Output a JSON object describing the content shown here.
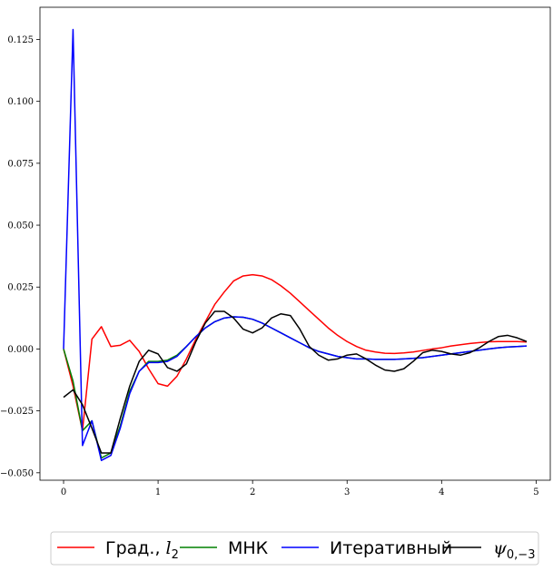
{
  "chart_data": {
    "type": "line",
    "title": "",
    "xlabel": "",
    "ylabel": "",
    "xlim": [
      -0.25,
      5.15
    ],
    "ylim": [
      -0.053,
      0.138
    ],
    "xticks": [
      0,
      1,
      2,
      3,
      4,
      5
    ],
    "xtick_labels": [
      "0",
      "1",
      "2",
      "3",
      "4",
      "5"
    ],
    "yticks": [
      -0.05,
      -0.025,
      0.0,
      0.025,
      0.05,
      0.075,
      0.1,
      0.125
    ],
    "ytick_labels": [
      "−0.050",
      "−0.025",
      "0.000",
      "0.025",
      "0.050",
      "0.075",
      "0.100",
      "0.125"
    ],
    "grid": false,
    "legend_position": "bottom-outside",
    "series": [
      {
        "name": "Град., l2",
        "color": "#ff0000",
        "x": [
          0,
          0.1,
          0.2,
          0.3,
          0.4,
          0.5,
          0.6,
          0.7,
          0.8,
          0.9,
          1.0,
          1.1,
          1.2,
          1.3,
          1.4,
          1.5,
          1.6,
          1.7,
          1.8,
          1.9,
          2.0,
          2.1,
          2.2,
          2.3,
          2.4,
          2.5,
          2.6,
          2.7,
          2.8,
          2.9,
          3.0,
          3.1,
          3.2,
          3.3,
          3.4,
          3.5,
          3.6,
          3.7,
          3.8,
          3.9,
          4.0,
          4.1,
          4.2,
          4.3,
          4.4,
          4.5,
          4.6,
          4.7,
          4.8,
          4.9
        ],
        "values": [
          0.0,
          -0.015,
          -0.033,
          0.004,
          0.009,
          0.001,
          0.0015,
          0.0035,
          -0.001,
          -0.008,
          -0.014,
          -0.015,
          -0.011,
          -0.004,
          0.004,
          0.011,
          0.018,
          0.023,
          0.0275,
          0.0295,
          0.03,
          0.0295,
          0.028,
          0.0255,
          0.0225,
          0.019,
          0.0155,
          0.012,
          0.0085,
          0.0055,
          0.003,
          0.001,
          -0.0005,
          -0.0012,
          -0.0017,
          -0.0018,
          -0.0016,
          -0.0012,
          -0.0006,
          0.0,
          0.0005,
          0.0012,
          0.0017,
          0.0022,
          0.0026,
          0.0029,
          0.003,
          0.003,
          0.003,
          0.0028
        ]
      },
      {
        "name": "МНК",
        "color": "#008000",
        "x": [
          0,
          0.1,
          0.2,
          0.3,
          0.4,
          0.5,
          0.6,
          0.7,
          0.8,
          0.9,
          1.0,
          1.1,
          1.2,
          1.3,
          1.4,
          1.5,
          1.6,
          1.7,
          1.8,
          1.9,
          2.0,
          2.1,
          2.2,
          2.3,
          2.4,
          2.5,
          2.6,
          2.7,
          2.8,
          2.9,
          3.0,
          3.1,
          3.2,
          3.3,
          3.4,
          3.5,
          3.6,
          3.7,
          3.8,
          3.9,
          4.0,
          4.1,
          4.2,
          4.3,
          4.4,
          4.5,
          4.6,
          4.7,
          4.8,
          4.9
        ],
        "values": [
          0.0,
          -0.013,
          -0.033,
          -0.029,
          -0.044,
          -0.042,
          -0.031,
          -0.017,
          -0.009,
          -0.005,
          -0.005,
          -0.0045,
          -0.0025,
          0.001,
          0.005,
          0.0085,
          0.011,
          0.0125,
          0.013,
          0.0128,
          0.012,
          0.0105,
          0.0085,
          0.0065,
          0.0045,
          0.0025,
          0.0005,
          -0.001,
          -0.002,
          -0.003,
          -0.0035,
          -0.004,
          -0.004,
          -0.0042,
          -0.0042,
          -0.0042,
          -0.004,
          -0.0038,
          -0.0035,
          -0.003,
          -0.0025,
          -0.002,
          -0.0015,
          -0.001,
          -0.0005,
          0.0,
          0.0005,
          0.0008,
          0.001,
          0.0012
        ]
      },
      {
        "name": "Итеративный",
        "color": "#0000ff",
        "x": [
          0,
          0.1,
          0.2,
          0.3,
          0.4,
          0.5,
          0.6,
          0.7,
          0.8,
          0.9,
          1.0,
          1.1,
          1.2,
          1.3,
          1.4,
          1.5,
          1.6,
          1.7,
          1.8,
          1.9,
          2.0,
          2.1,
          2.2,
          2.3,
          2.4,
          2.5,
          2.6,
          2.7,
          2.8,
          2.9,
          3.0,
          3.1,
          3.2,
          3.3,
          3.4,
          3.5,
          3.6,
          3.7,
          3.8,
          3.9,
          4.0,
          4.1,
          4.2,
          4.3,
          4.4,
          4.5,
          4.6,
          4.7,
          4.8,
          4.9
        ],
        "values": [
          0.0,
          0.129,
          -0.039,
          -0.029,
          -0.045,
          -0.043,
          -0.032,
          -0.018,
          -0.009,
          -0.0055,
          -0.0055,
          -0.005,
          -0.003,
          0.001,
          0.005,
          0.0085,
          0.011,
          0.0125,
          0.013,
          0.0128,
          0.012,
          0.0105,
          0.0085,
          0.0065,
          0.0045,
          0.0025,
          0.0005,
          -0.001,
          -0.002,
          -0.003,
          -0.0035,
          -0.004,
          -0.004,
          -0.0042,
          -0.0042,
          -0.0042,
          -0.004,
          -0.0038,
          -0.0035,
          -0.003,
          -0.0025,
          -0.002,
          -0.0015,
          -0.001,
          -0.0005,
          0.0,
          0.0005,
          0.0008,
          0.001,
          0.0012
        ]
      },
      {
        "name": "ψ0,−3",
        "color": "#000000",
        "x": [
          0,
          0.1,
          0.2,
          0.3,
          0.4,
          0.5,
          0.6,
          0.7,
          0.8,
          0.9,
          1.0,
          1.1,
          1.2,
          1.3,
          1.4,
          1.5,
          1.6,
          1.7,
          1.8,
          1.9,
          2.0,
          2.1,
          2.2,
          2.3,
          2.4,
          2.5,
          2.6,
          2.7,
          2.8,
          2.9,
          3.0,
          3.1,
          3.2,
          3.3,
          3.4,
          3.5,
          3.6,
          3.7,
          3.8,
          3.9,
          4.0,
          4.1,
          4.2,
          4.3,
          4.4,
          4.5,
          4.6,
          4.7,
          4.8,
          4.9
        ],
        "values": [
          -0.0195,
          -0.0165,
          -0.0225,
          -0.032,
          -0.042,
          -0.042,
          -0.028,
          -0.015,
          -0.005,
          -0.0005,
          -0.002,
          -0.0075,
          -0.009,
          -0.006,
          0.003,
          0.0105,
          0.0152,
          0.0152,
          0.0125,
          0.008,
          0.0065,
          0.0085,
          0.0125,
          0.0142,
          0.0135,
          0.008,
          0.001,
          -0.0025,
          -0.0045,
          -0.004,
          -0.0025,
          -0.002,
          -0.004,
          -0.0065,
          -0.0085,
          -0.009,
          -0.008,
          -0.005,
          -0.0015,
          -0.0005,
          -0.001,
          -0.002,
          -0.0025,
          -0.0015,
          0.0005,
          0.003,
          0.005,
          0.0055,
          0.0045,
          0.003
        ]
      }
    ]
  },
  "legend": {
    "items": [
      {
        "label": "Град., ",
        "math": "l",
        "sub": "2",
        "color": "#ff0000"
      },
      {
        "label": "МНК",
        "math": "",
        "sub": "",
        "color": "#008000"
      },
      {
        "label": "Итеративный",
        "math": "",
        "sub": "",
        "color": "#0000ff"
      },
      {
        "label": "",
        "math": "ψ",
        "sub": "0,−3",
        "color": "#000000"
      }
    ]
  }
}
